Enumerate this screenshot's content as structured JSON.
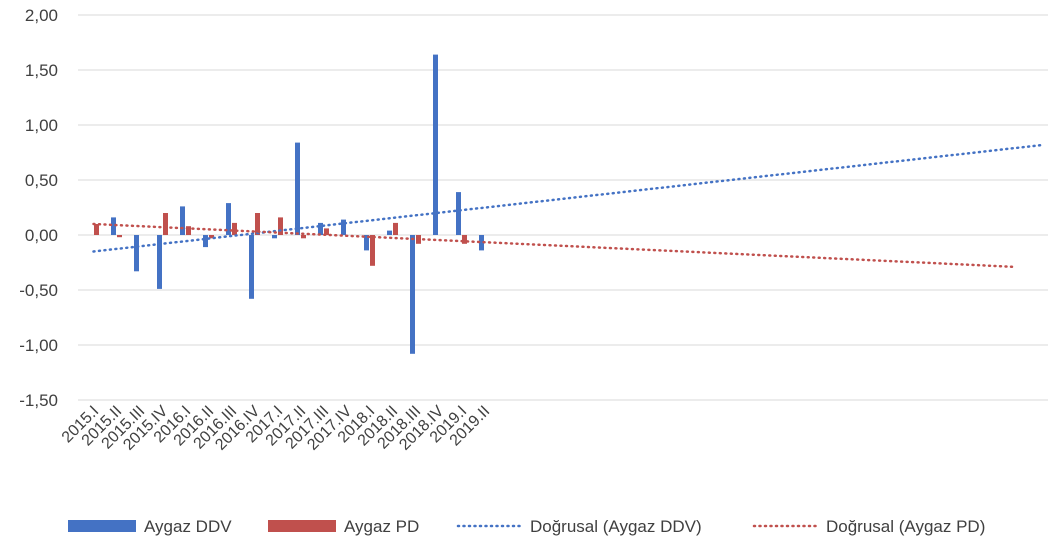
{
  "chart_data": {
    "type": "bar",
    "categories": [
      "2015.I",
      "2015.II",
      "2015.III",
      "2015.IV",
      "2016.I",
      "2016.II",
      "2016.III",
      "2016.IV",
      "2017.I",
      "2017.II",
      "2017.III",
      "2017.IV",
      "2018.I",
      "2018.II",
      "2018.III",
      "2018.IV",
      "2019.I",
      "2019.II"
    ],
    "series": [
      {
        "name": "Aygaz DDV",
        "color": "#4472C4",
        "values": [
          0.0,
          0.16,
          -0.33,
          -0.49,
          0.26,
          -0.11,
          0.29,
          -0.58,
          -0.03,
          0.84,
          0.11,
          0.14,
          -0.14,
          0.04,
          -1.08,
          1.64,
          0.39,
          -0.14
        ]
      },
      {
        "name": "Aygaz PD",
        "color": "#C0504D",
        "values": [
          0.1,
          -0.02,
          0.0,
          0.2,
          0.08,
          -0.03,
          0.11,
          0.2,
          0.16,
          -0.03,
          0.06,
          0.0,
          -0.28,
          0.11,
          -0.08,
          0.0,
          -0.08,
          0.0
        ]
      }
    ],
    "trendlines": [
      {
        "name": "Doğrusal (Aygaz DDV)",
        "color": "#4472C4",
        "start": -0.15,
        "end": 0.82
      },
      {
        "name": "Doğrusal (Aygaz PD)",
        "color": "#C0504D",
        "start": 0.1,
        "end": -0.29
      }
    ],
    "ylim": [
      -1.5,
      2.0
    ],
    "yticks": [
      "-1,50",
      "-1,00",
      "-0,50",
      "0,00",
      "0,50",
      "1,00",
      "1,50",
      "2,00"
    ],
    "ytick_values": [
      -1.5,
      -1.0,
      -0.5,
      0.0,
      0.5,
      1.0,
      1.5,
      2.0
    ],
    "grid": true,
    "legend_position": "bottom",
    "title": "",
    "xlabel": "",
    "ylabel": ""
  }
}
